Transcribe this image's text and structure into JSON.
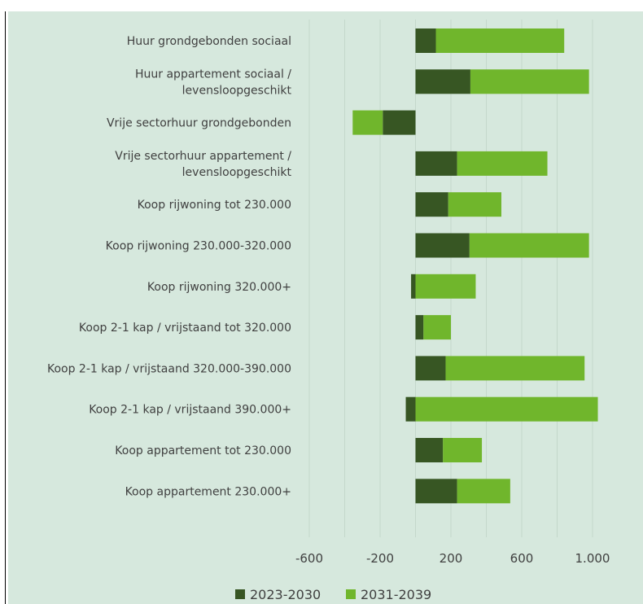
{
  "chart_data": {
    "type": "bar",
    "orientation": "horizontal",
    "stacked": true,
    "categories": [
      [
        "Huur grondgebonden sociaal"
      ],
      [
        "Huur appartement sociaal /",
        "levensloopgeschikt"
      ],
      [
        "Vrije sectorhuur grondgebonden"
      ],
      [
        "Vrije sectorhuur appartement /",
        "levensloopgeschikt"
      ],
      [
        "Koop rijwoning tot 230.000"
      ],
      [
        "Koop rijwoning 230.000-320.000"
      ],
      [
        "Koop rijwoning 320.000+"
      ],
      [
        "Koop 2-1 kap / vrijstaand tot 320.000"
      ],
      [
        "Koop 2-1 kap / vrijstaand 320.000-390.000"
      ],
      [
        "Koop 2-1 kap / vrijstaand 390.000+"
      ],
      [
        "Koop appartement tot 230.000"
      ],
      [
        "Koop appartement 230.000+"
      ]
    ],
    "series": [
      {
        "name": "2023-2030",
        "color": "#375623",
        "values": [
          115,
          310,
          -185,
          235,
          185,
          305,
          -25,
          45,
          170,
          -55,
          155,
          235
        ]
      },
      {
        "name": "2031-2039",
        "color": "#70b62c",
        "values": [
          725,
          670,
          -170,
          510,
          300,
          675,
          340,
          155,
          785,
          1030,
          220,
          300
        ]
      }
    ],
    "xlim": [
      -600,
      1000
    ],
    "xticks": [
      -600,
      -200,
      200,
      600,
      1000
    ],
    "xtick_labels": [
      "-600",
      "-200",
      "200",
      "600",
      "1.000"
    ],
    "grid": "vertical",
    "legend": "bottom"
  }
}
